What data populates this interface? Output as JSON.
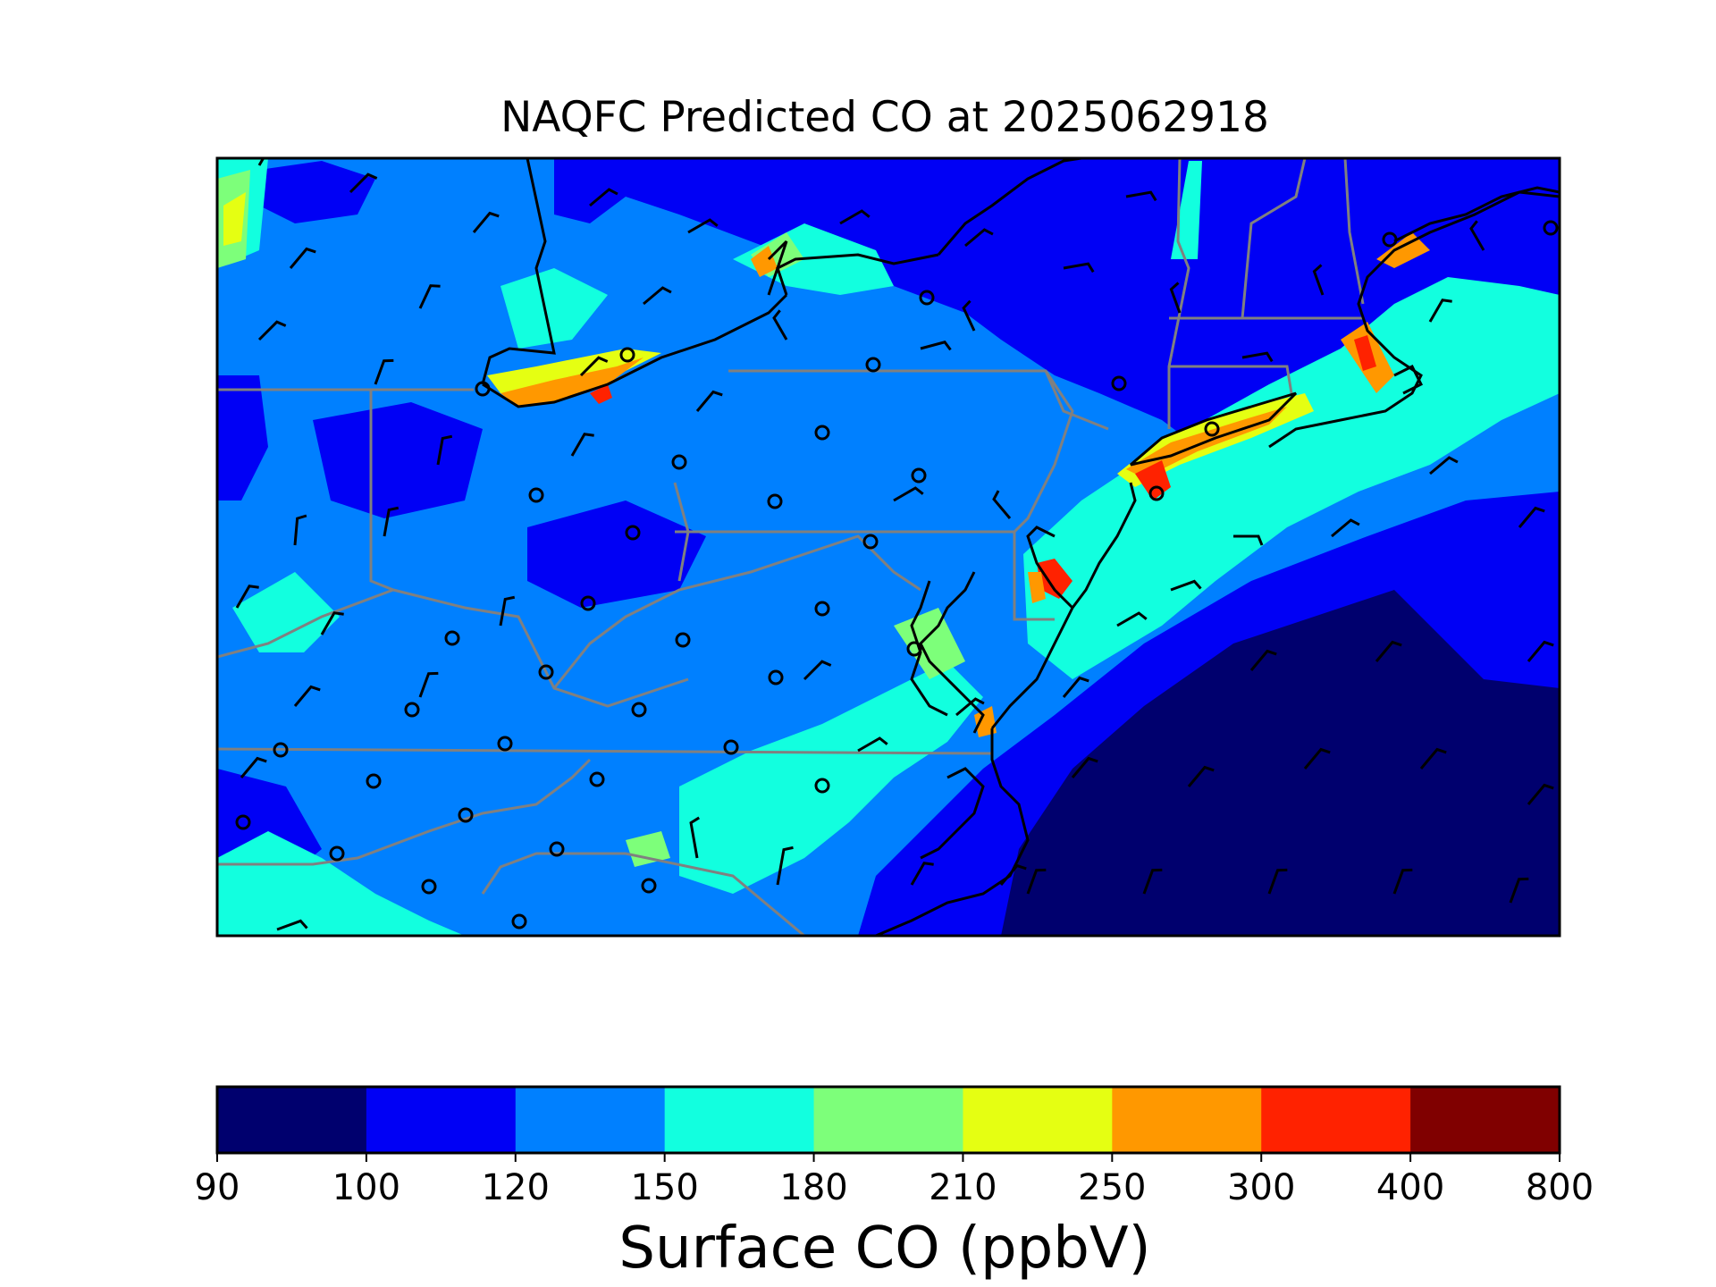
{
  "title": "NAQFC Predicted CO at 2025062918",
  "colorbar": {
    "label": "Surface CO (ppbV)",
    "ticks": [
      "90",
      "100",
      "120",
      "150",
      "180",
      "210",
      "250",
      "300",
      "400",
      "800"
    ],
    "colors": [
      "#00006e",
      "#0000f5",
      "#0080ff",
      "#12ffdf",
      "#7dff7a",
      "#e5ff12",
      "#ff9800",
      "#ff2200",
      "#800000"
    ]
  },
  "colors": {
    "darkblue": "#00006e",
    "blue": "#0000f5",
    "lightblue": "#0080ff",
    "cyan": "#12ffdf",
    "green": "#7dff7a",
    "yellow": "#e5ff12",
    "orange": "#ff9800",
    "red": "#ff2200",
    "darkred": "#800000",
    "coast": "#000000",
    "state_border": "#808080"
  }
}
